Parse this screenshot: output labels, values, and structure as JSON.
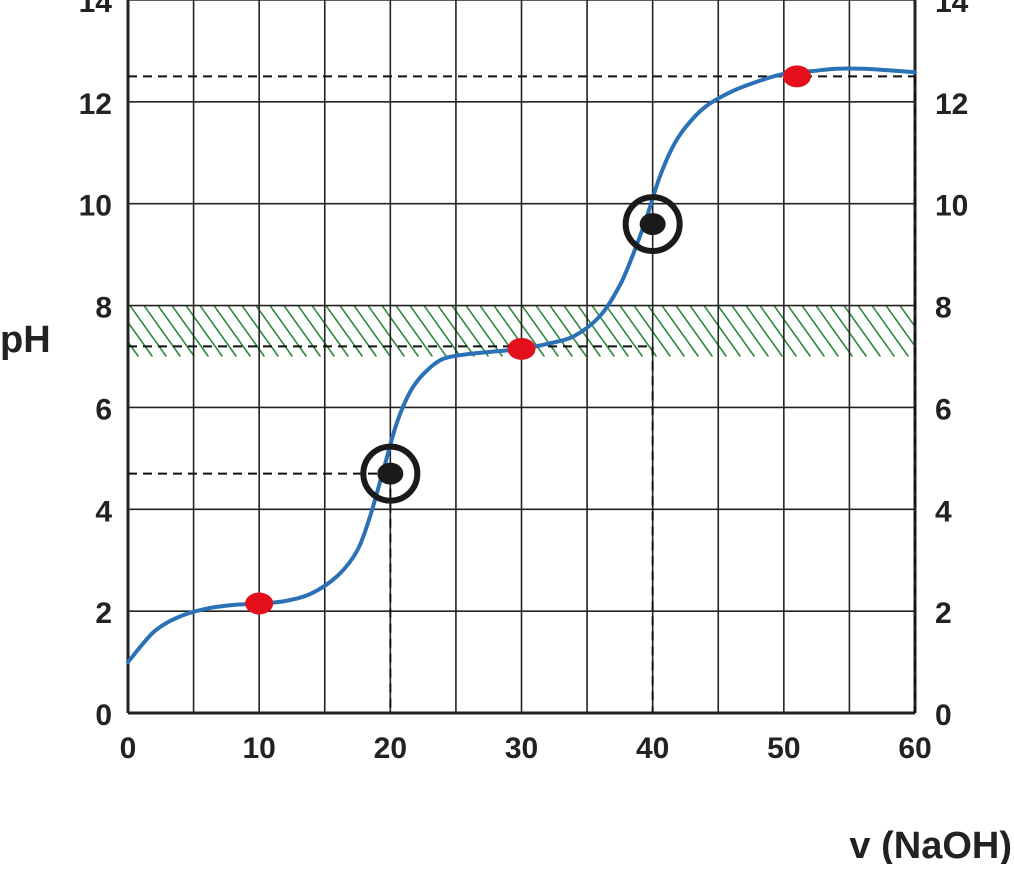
{
  "chart_data": {
    "type": "line",
    "ylabel": "pH",
    "xlabel": "v (NaOH)",
    "xlim": [
      0,
      60
    ],
    "ylim": [
      0,
      14
    ],
    "x_ticks": [
      "0",
      "10",
      "20",
      "30",
      "40",
      "50",
      "60"
    ],
    "y_ticks": [
      "0",
      "2",
      "4",
      "6",
      "8",
      "10",
      "12",
      "14"
    ],
    "grid": true,
    "series": [
      {
        "color": "#2a72b5",
        "x": [
          0,
          2,
          4,
          6,
          8,
          10,
          12,
          14,
          16,
          17.5,
          18.5,
          19.5,
          20.5,
          21.5,
          22.5,
          24,
          26,
          28,
          30,
          32,
          34,
          36,
          37.5,
          38.5,
          39.5,
          40.5,
          41.5,
          42.5,
          44,
          46,
          48,
          50,
          52,
          54,
          56,
          58,
          60
        ],
        "y": [
          1.0,
          1.6,
          1.9,
          2.05,
          2.12,
          2.15,
          2.2,
          2.35,
          2.7,
          3.2,
          3.9,
          4.8,
          5.7,
          6.3,
          6.65,
          6.95,
          7.05,
          7.1,
          7.15,
          7.25,
          7.4,
          7.8,
          8.4,
          9.0,
          9.7,
          10.5,
          11.1,
          11.5,
          11.9,
          12.2,
          12.4,
          12.55,
          12.6,
          12.65,
          12.65,
          12.62,
          12.58
        ]
      }
    ],
    "hatched_band": {
      "y_from": 7.0,
      "y_to": 8.0,
      "color": "#2e8b3d"
    },
    "red_points": [
      {
        "x": 10,
        "y": 2.15
      },
      {
        "x": 30,
        "y": 7.15
      },
      {
        "x": 51,
        "y": 12.5
      }
    ],
    "circled_points": [
      {
        "x": 20,
        "y": 4.7
      },
      {
        "x": 40,
        "y": 9.6
      }
    ],
    "dashed_guides": [
      {
        "x": 20,
        "y": 4.7
      },
      {
        "x": 40,
        "y": 7.2
      },
      {
        "x": 60,
        "y": 12.5
      }
    ],
    "colors": {
      "curve": "#2a72b5",
      "red_point": "#e3101b",
      "dark_point": "#1a1a1a",
      "hatch": "#2e8b3d",
      "grid": "#222222"
    }
  }
}
